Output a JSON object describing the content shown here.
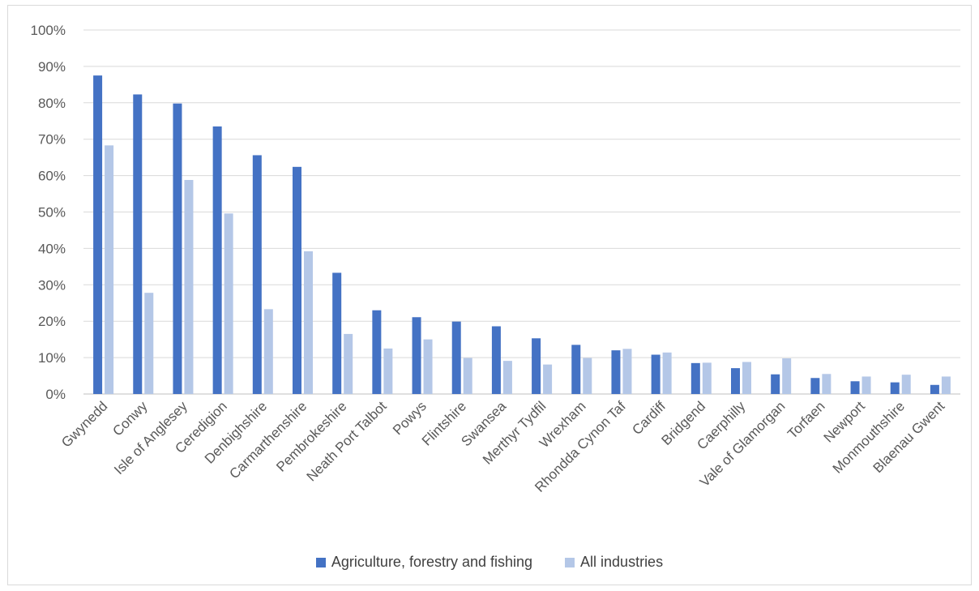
{
  "chart_data": {
    "type": "bar",
    "categories": [
      "Gwynedd",
      "Conwy",
      "Isle of Anglesey",
      "Ceredigion",
      "Denbighshire",
      "Carmarthenshire",
      "Pembrokeshire",
      "Neath Port Talbot",
      "Powys",
      "Flintshire",
      "Swansea",
      "Merthyr Tydfil",
      "Wrexham",
      "Rhondda Cynon Taf",
      "Cardiff",
      "Bridgend",
      "Caerphilly",
      "Vale of Glamorgan",
      "Torfaen",
      "Newport",
      "Monmouthshire",
      "Blaenau Gwent"
    ],
    "series": [
      {
        "name": "Agriculture, forestry and fishing",
        "color": "#4472c4",
        "values": [
          87.5,
          82.3,
          79.8,
          73.5,
          65.6,
          62.4,
          33.3,
          23.0,
          21.1,
          19.9,
          18.6,
          15.3,
          13.5,
          12.0,
          10.8,
          8.5,
          7.1,
          5.4,
          4.4,
          3.5,
          3.2,
          2.5
        ]
      },
      {
        "name": "All industries",
        "color": "#b4c7e7",
        "values": [
          68.3,
          27.8,
          58.8,
          49.6,
          23.3,
          39.2,
          16.5,
          12.5,
          15.0,
          9.9,
          9.1,
          8.1,
          9.9,
          12.4,
          11.4,
          8.6,
          8.8,
          9.8,
          5.5,
          4.8,
          5.3,
          4.8
        ]
      }
    ],
    "ylim": [
      0,
      100
    ],
    "yticks": [
      "0%",
      "10%",
      "20%",
      "30%",
      "40%",
      "50%",
      "60%",
      "70%",
      "80%",
      "90%",
      "100%"
    ],
    "grid": true,
    "legend_position": "bottom",
    "title": "",
    "xlabel": "",
    "ylabel": ""
  }
}
